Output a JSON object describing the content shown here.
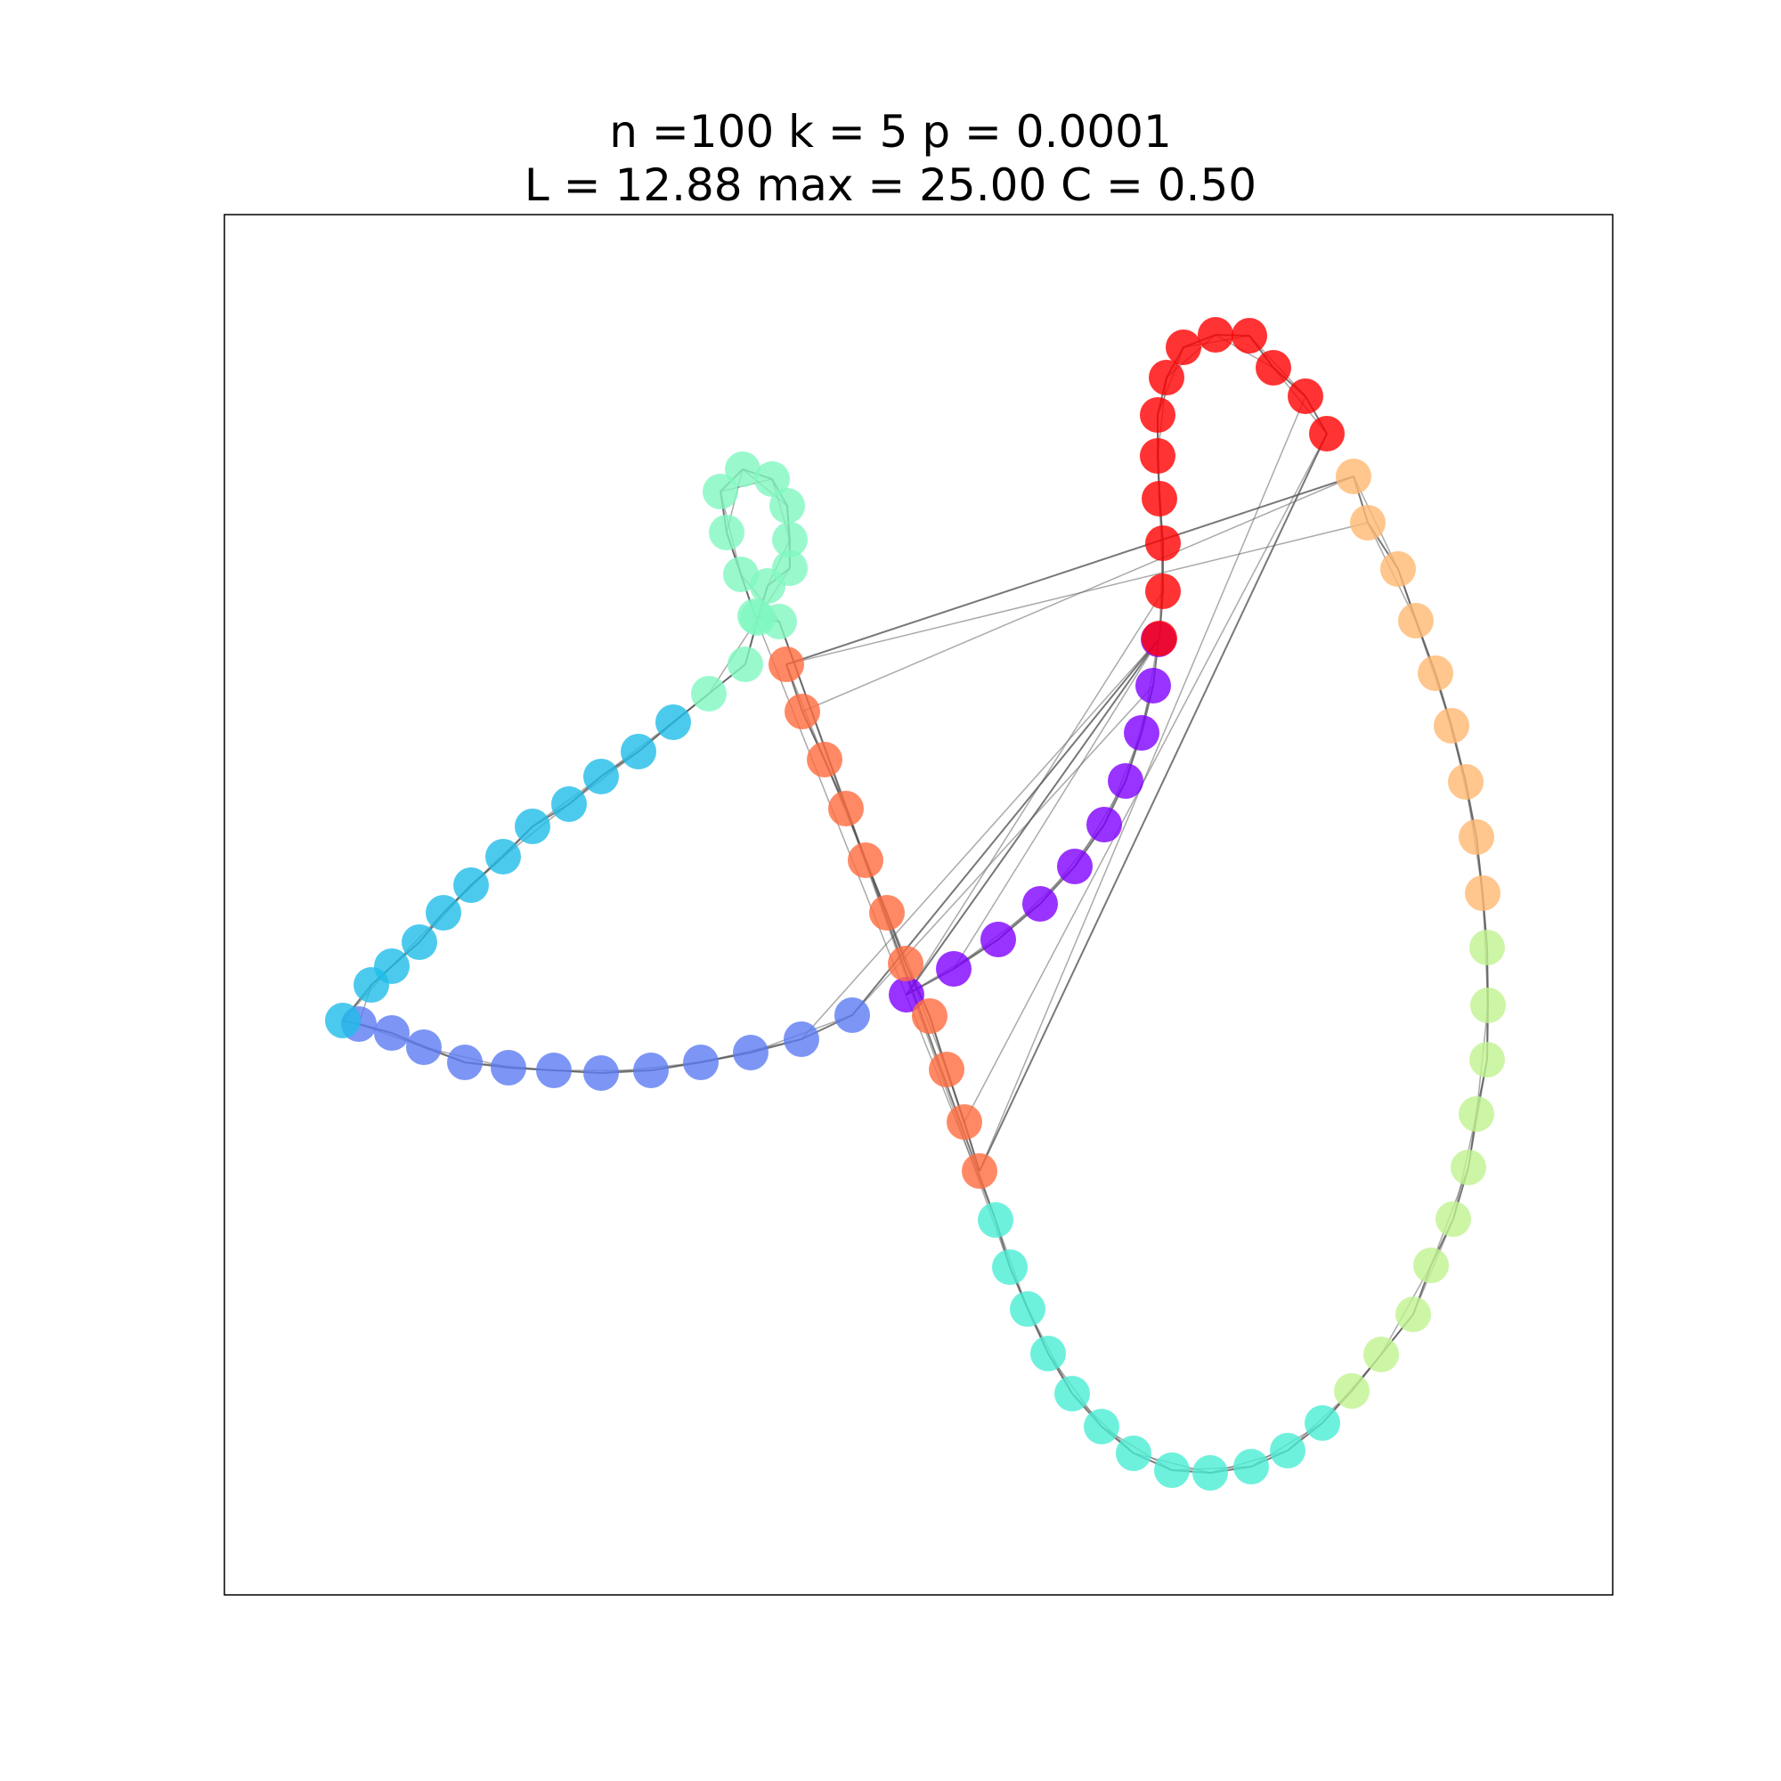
{
  "figure": {
    "title_line_1": "n =100 k = 5 p = 0.0001",
    "title_line_2": "L = 12.88 max = 25.00 C = 0.50"
  },
  "graph": {
    "node_count": 100,
    "edge_color": "#555555",
    "frame_color": "#000000",
    "segments": [
      {
        "color": "#8000ff",
        "role": "purple"
      },
      {
        "color": "#5d7cf2",
        "role": "blue"
      },
      {
        "color": "#1fbde8",
        "role": "cyan"
      },
      {
        "color": "#80f8c0",
        "role": "mint"
      },
      {
        "color": "#4aeed3",
        "role": "turquoise"
      },
      {
        "color": "#c0f290",
        "role": "lime"
      },
      {
        "color": "#ffb870",
        "role": "light-orange"
      },
      {
        "color": "#ff6c3e",
        "role": "orange"
      },
      {
        "color": "#ff0000",
        "role": "red"
      }
    ]
  }
}
